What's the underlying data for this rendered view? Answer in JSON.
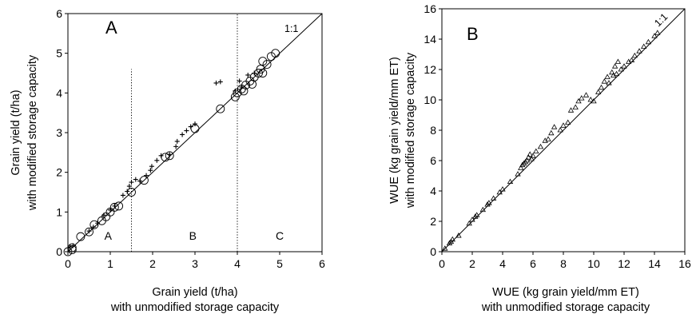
{
  "chart_data": [
    {
      "type": "scatter",
      "panel_label": "A",
      "xlabel": [
        "Grain yield (t/ha)",
        "with unmodified storage capacity"
      ],
      "ylabel": [
        "Grain yield (t/ha)",
        "with modified storage capacity"
      ],
      "xlim": [
        0,
        6
      ],
      "ylim": [
        0,
        6
      ],
      "xticks": [
        "0",
        "1",
        "2",
        "3",
        "4",
        "5",
        "6"
      ],
      "yticks": [
        "0",
        "1",
        "2",
        "3",
        "4",
        "5",
        "6"
      ],
      "reference_line": {
        "label": "1:1",
        "from": [
          0,
          0
        ],
        "to": [
          6,
          6
        ]
      },
      "vertical_dotted_lines": [
        {
          "x": 1.5,
          "y_top": 4.6
        },
        {
          "x": 4.0,
          "y_top": 6.0
        }
      ],
      "region_labels": [
        {
          "text": "A",
          "x": 0.95,
          "y": 0.3
        },
        {
          "text": "B",
          "x": 2.95,
          "y": 0.3
        },
        {
          "text": "C",
          "x": 5.0,
          "y": 0.3
        }
      ],
      "grid": false,
      "series": [
        {
          "marker": "circle",
          "points": [
            [
              0.0,
              0.0
            ],
            [
              0.1,
              0.1
            ],
            [
              0.1,
              0.05
            ],
            [
              0.3,
              0.38
            ],
            [
              0.5,
              0.5
            ],
            [
              0.62,
              0.68
            ],
            [
              0.8,
              0.78
            ],
            [
              0.9,
              0.88
            ],
            [
              1.0,
              1.0
            ],
            [
              1.1,
              1.12
            ],
            [
              1.2,
              1.15
            ],
            [
              1.5,
              1.5
            ],
            [
              1.8,
              1.8
            ],
            [
              2.3,
              2.38
            ],
            [
              2.4,
              2.42
            ],
            [
              3.0,
              3.1
            ],
            [
              3.6,
              3.6
            ],
            [
              3.95,
              3.9
            ],
            [
              4.0,
              4.0
            ],
            [
              4.1,
              4.1
            ],
            [
              4.15,
              4.05
            ],
            [
              4.2,
              4.2
            ],
            [
              4.3,
              4.3
            ],
            [
              4.35,
              4.22
            ],
            [
              4.4,
              4.4
            ],
            [
              4.5,
              4.5
            ],
            [
              4.55,
              4.6
            ],
            [
              4.6,
              4.5
            ],
            [
              4.7,
              4.72
            ],
            [
              4.6,
              4.8
            ],
            [
              4.8,
              4.92
            ],
            [
              4.9,
              5.0
            ]
          ]
        },
        {
          "marker": "plus",
          "points": [
            [
              0.05,
              0.12
            ],
            [
              0.12,
              0.15
            ],
            [
              0.5,
              0.52
            ],
            [
              0.6,
              0.62
            ],
            [
              0.7,
              0.72
            ],
            [
              0.85,
              0.92
            ],
            [
              1.0,
              1.05
            ],
            [
              1.1,
              1.15
            ],
            [
              1.3,
              1.42
            ],
            [
              1.4,
              1.52
            ],
            [
              1.45,
              1.65
            ],
            [
              1.5,
              1.75
            ],
            [
              1.6,
              1.82
            ],
            [
              1.7,
              1.78
            ],
            [
              1.85,
              1.92
            ],
            [
              1.95,
              2.05
            ],
            [
              1.98,
              2.15
            ],
            [
              2.1,
              2.3
            ],
            [
              2.2,
              2.42
            ],
            [
              2.4,
              2.45
            ],
            [
              2.55,
              2.65
            ],
            [
              2.58,
              2.78
            ],
            [
              2.7,
              2.95
            ],
            [
              2.8,
              3.05
            ],
            [
              2.9,
              3.15
            ],
            [
              3.0,
              3.22
            ],
            [
              3.5,
              4.25
            ],
            [
              3.6,
              4.28
            ],
            [
              3.95,
              4.05
            ],
            [
              4.05,
              4.3
            ],
            [
              4.1,
              4.15
            ],
            [
              4.25,
              4.45
            ],
            [
              4.4,
              4.5
            ]
          ]
        }
      ]
    },
    {
      "type": "scatter",
      "panel_label": "B",
      "xlabel": [
        "WUE (kg grain yield/mm ET)",
        "with unmodified storage capacity"
      ],
      "ylabel": [
        "WUE (kg grain yield/mm ET)",
        "with modified storage capacity"
      ],
      "xlim": [
        0,
        16
      ],
      "ylim": [
        0,
        16
      ],
      "xticks": [
        "0",
        "2",
        "4",
        "6",
        "8",
        "10",
        "12",
        "14",
        "16"
      ],
      "yticks": [
        "0",
        "2",
        "4",
        "6",
        "8",
        "10",
        "12",
        "14",
        "16"
      ],
      "reference_line": {
        "label": "1:1",
        "from": [
          0,
          0
        ],
        "to": [
          16,
          16
        ]
      },
      "grid": false,
      "series": [
        {
          "marker": "triangle",
          "points": [
            [
              0.2,
              0.2
            ],
            [
              0.5,
              0.55
            ],
            [
              0.6,
              0.65
            ],
            [
              0.7,
              0.8
            ],
            [
              1.1,
              1.05
            ],
            [
              1.8,
              1.85
            ],
            [
              2.0,
              2.1
            ],
            [
              2.2,
              2.3
            ],
            [
              2.3,
              2.4
            ],
            [
              2.7,
              2.75
            ],
            [
              3.0,
              3.1
            ],
            [
              3.1,
              3.2
            ],
            [
              3.4,
              3.5
            ],
            [
              3.8,
              3.9
            ],
            [
              4.0,
              4.1
            ],
            [
              4.5,
              4.6
            ],
            [
              5.0,
              5.1
            ],
            [
              5.2,
              5.5
            ],
            [
              5.3,
              5.7
            ],
            [
              5.4,
              5.8
            ],
            [
              5.5,
              5.9
            ],
            [
              5.6,
              6.0
            ],
            [
              5.7,
              6.2
            ],
            [
              5.8,
              6.4
            ],
            [
              5.9,
              6.1
            ],
            [
              6.0,
              6.3
            ],
            [
              6.2,
              6.6
            ],
            [
              6.5,
              6.9
            ],
            [
              6.8,
              7.3
            ],
            [
              7.0,
              7.4
            ],
            [
              7.2,
              7.8
            ],
            [
              7.4,
              8.2
            ],
            [
              7.8,
              8.0
            ],
            [
              8.0,
              8.3
            ],
            [
              8.3,
              8.5
            ],
            [
              8.5,
              9.3
            ],
            [
              8.8,
              9.5
            ],
            [
              9.0,
              9.9
            ],
            [
              9.2,
              10.1
            ],
            [
              9.5,
              10.3
            ],
            [
              9.8,
              10.0
            ],
            [
              10.0,
              9.9
            ],
            [
              10.3,
              10.5
            ],
            [
              10.5,
              10.8
            ],
            [
              10.7,
              11.2
            ],
            [
              10.9,
              11.5
            ],
            [
              11.0,
              11.1
            ],
            [
              11.2,
              11.8
            ],
            [
              11.3,
              11.6
            ],
            [
              11.4,
              12.2
            ],
            [
              11.5,
              11.7
            ],
            [
              11.6,
              12.5
            ],
            [
              11.8,
              12.0
            ],
            [
              12.0,
              12.2
            ],
            [
              12.3,
              12.5
            ],
            [
              12.5,
              12.6
            ],
            [
              12.7,
              12.9
            ],
            [
              13.0,
              13.2
            ],
            [
              13.3,
              13.5
            ],
            [
              13.6,
              13.8
            ],
            [
              14.0,
              14.2
            ],
            [
              14.2,
              14.4
            ]
          ]
        }
      ]
    }
  ]
}
